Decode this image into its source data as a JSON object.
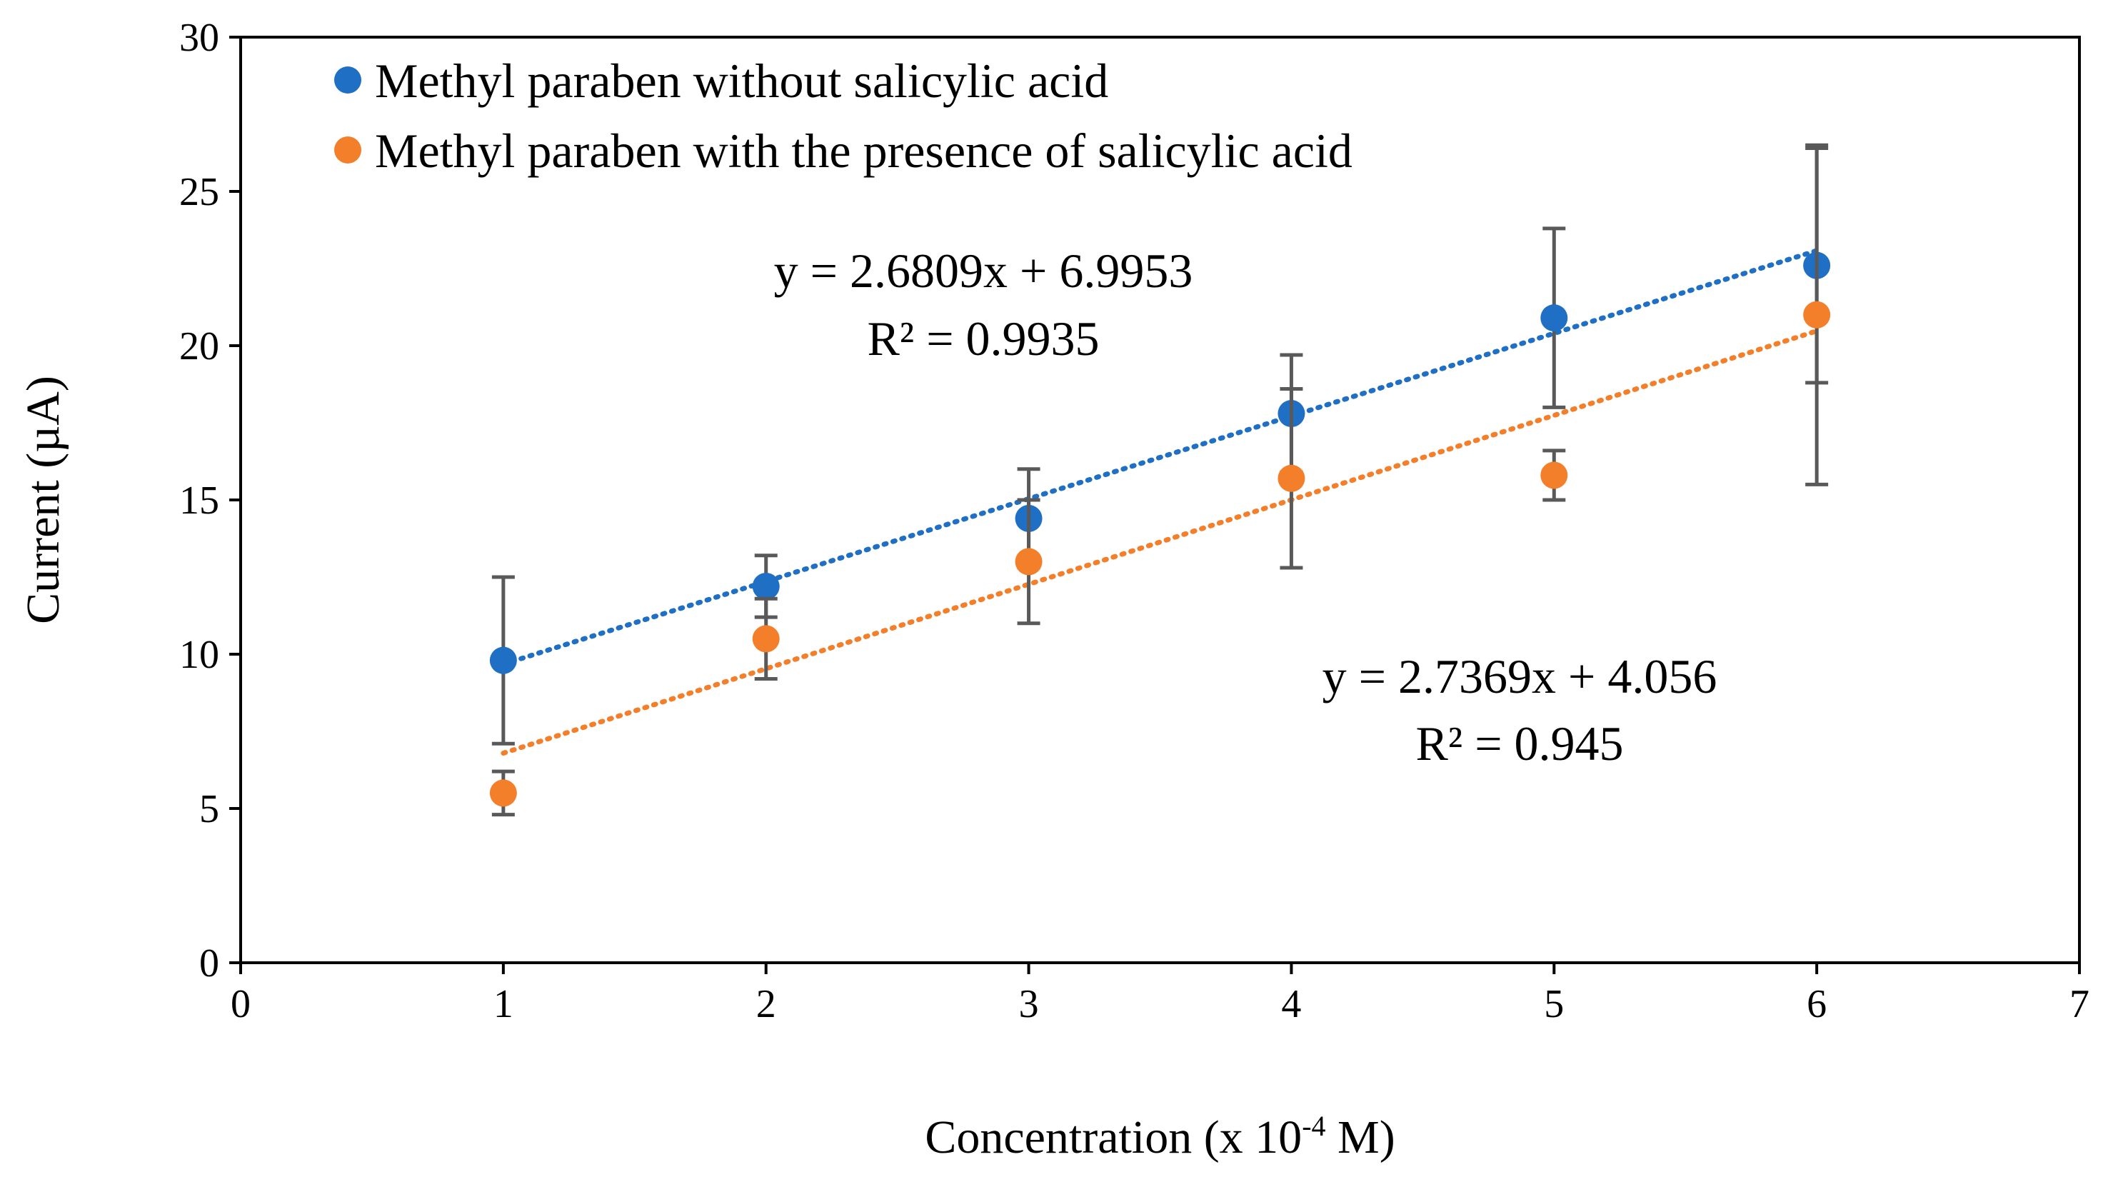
{
  "chart_data": {
    "type": "scatter",
    "title": "",
    "xlabel": "Concentration (x 10",
    "xlabel_superscript": "-4",
    "xlabel_suffix": " M)",
    "ylabel": "Current (µA)",
    "xlim": [
      0,
      7
    ],
    "ylim": [
      0,
      30
    ],
    "xticks": [
      "0",
      "1",
      "2",
      "3",
      "4",
      "5",
      "6",
      "7"
    ],
    "yticks": [
      "0",
      "5",
      "10",
      "15",
      "20",
      "25",
      "30"
    ],
    "grid": false,
    "legend_position": "top-left",
    "series": [
      {
        "name": "Methyl paraben without salicylic acid",
        "color": "#1f6fc5",
        "x": [
          1,
          2,
          3,
          4,
          5,
          6
        ],
        "y": [
          9.8,
          12.2,
          14.4,
          17.8,
          20.9,
          22.6
        ],
        "error": [
          2.7,
          1.0,
          1.6,
          1.9,
          2.9,
          3.8
        ],
        "trendline": {
          "slope": 2.6809,
          "intercept": 6.9953,
          "x_range": [
            1,
            6
          ]
        },
        "equation": "y = 2.6809x + 6.9953",
        "r2_label": "R² = 0.9935"
      },
      {
        "name": "Methyl paraben with the presence of salicylic acid",
        "color": "#f47f2b",
        "x": [
          1,
          2,
          3,
          4,
          5,
          6
        ],
        "y": [
          5.5,
          10.5,
          13.0,
          15.7,
          15.8,
          21.0
        ],
        "error": [
          0.7,
          1.3,
          2.0,
          2.9,
          0.8,
          5.5
        ],
        "trendline": {
          "slope": 2.7369,
          "intercept": 4.056,
          "x_range": [
            1,
            6
          ]
        },
        "equation": "y = 2.7369x + 4.056",
        "r2_label": "R² = 0.945"
      }
    ],
    "error_bar_color": "#595959"
  }
}
